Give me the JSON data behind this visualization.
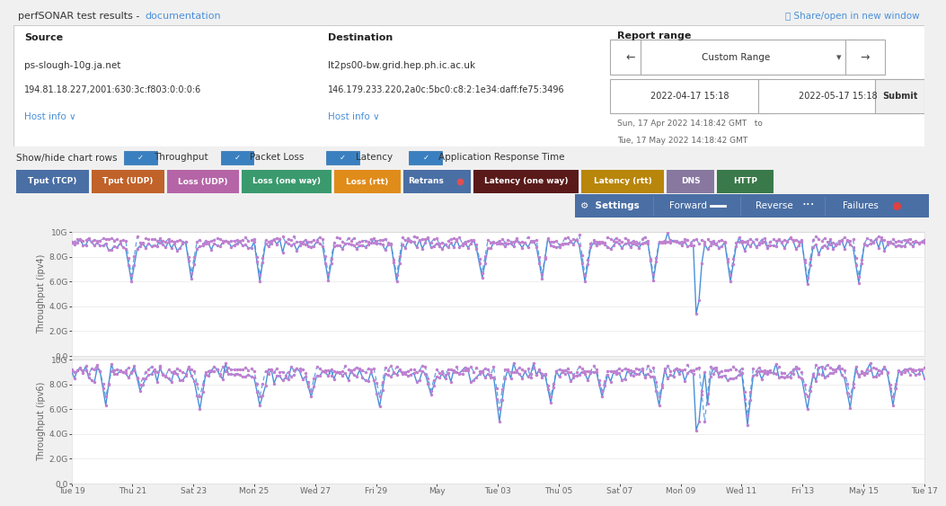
{
  "title_text": "perfSONAR test results - ",
  "title_link": "documentation",
  "share_link": "🔗 Share/open in new window",
  "source_label": "Source",
  "source_host": "ps-slough-10g.ja.net",
  "source_ip": "194.81.18.227,2001:630:3c:f803:0:0:0:6",
  "source_hostinfo": "Host info ∨",
  "dest_label": "Destination",
  "dest_host": "lt2ps00-bw.grid.hep.ph.ic.ac.uk",
  "dest_ip": "146.179.233.220,2a0c:5bc0:c8:2:1e34:daff:fe75:3496",
  "dest_hostinfo": "Host info ∨",
  "report_range_label": "Report range",
  "date_start": "2022-04-17 15:18",
  "date_end": "2022-05-17 15:18",
  "date_range_start": "Sun, 17 Apr 2022 14:18:42 GMT",
  "date_range_end": "Tue, 17 May 2022 14:18:42 GMT",
  "show_hide_label": "Show/hide chart rows",
  "checkboxes": [
    "Throughput",
    "Packet Loss",
    "Latency",
    "Application Response Time"
  ],
  "tab_labels": [
    "Tput (TCP)",
    "Tput (UDP)",
    "Loss (UDP)",
    "Loss (one way)",
    "Loss (rtt)",
    "Retrans",
    "Latency (one way)",
    "Latency (rtt)",
    "DNS",
    "HTTP"
  ],
  "tab_colors": [
    "#4a6fa5",
    "#c0622a",
    "#b565a7",
    "#3a9a6e",
    "#e08c1a",
    "#4a6fa5",
    "#5a1a1a",
    "#b8860b",
    "#8878a0",
    "#3a7a4a"
  ],
  "retrans_dot_color": "#e05050",
  "settings_bar_color": "#4a6fa5",
  "chart1_ylabel": "Throughput (ipv4)",
  "chart2_ylabel": "Throughput (ipv6)",
  "y_ticks": [
    "0.0",
    "2.0G",
    "4.0G",
    "6.0G",
    "8.0G",
    "10G"
  ],
  "x_labels": [
    "Tue 19",
    "Thu 21",
    "Sat 23",
    "Mon 25",
    "Wed 27",
    "Fri 29",
    "May",
    "Tue 03",
    "Thu 05",
    "Sat 07",
    "Mon 09",
    "Wed 11",
    "Fri 13",
    "May 15",
    "Tue 17"
  ],
  "forward_color": "#4a90d9",
  "reverse_color": "#c080d0",
  "bg_color": "#f2f2f2",
  "panel_bg": "#f5f5f5",
  "border_color": "#cccccc"
}
